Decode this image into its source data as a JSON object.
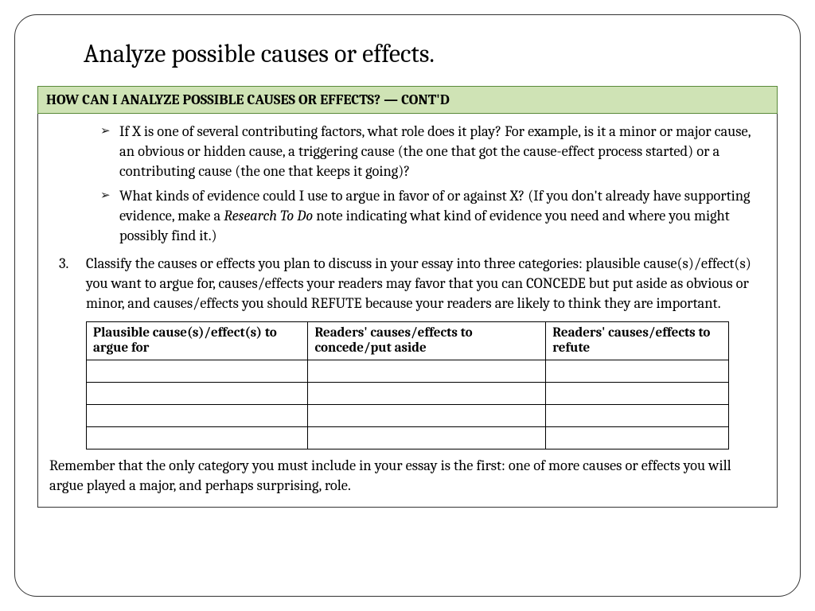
{
  "title": "Analyze possible causes or effects.",
  "header": "HOW CAN I ANALYZE POSSIBLE CAUSES OR EFFECTS? — CONT'D",
  "bullets": {
    "b1": "If X is one of several contributing factors, what role does it play? For example, is it a minor or major cause, an obvious or hidden cause, a triggering cause (the one that got the cause-effect process started) or a contributing cause (the one that keeps it going)?",
    "b2_a": "What kinds of evidence could I use to argue in favor of or against X? (If you don't already have supporting evidence, make a ",
    "b2_italic": "Research To Do",
    "b2_b": " note indicating what kind of evidence you need and where you might possibly find it.)"
  },
  "step3": {
    "num": "3.",
    "text": "Classify the causes or effects you plan to discuss in your essay into three categories: plausible cause(s)/effect(s) you want to argue for, causes/effects your readers may favor that you can CONCEDE but put aside as obvious or minor, and causes/effects you should REFUTE because your readers are likely to think they are important."
  },
  "table": {
    "col1": "Plausible cause(s)/effect(s) to argue for",
    "col2": "Readers' causes/effects to concede/put aside",
    "col3": "Readers' causes/effects to refute"
  },
  "footer": "Remember that the only category you must include in your essay is the first: one of more causes or effects you will argue played a major, and perhaps surprising, role.",
  "colors": {
    "header_bg": "#cfe3b5",
    "header_border": "#5a8a3a",
    "border": "#333333",
    "text": "#000000"
  }
}
